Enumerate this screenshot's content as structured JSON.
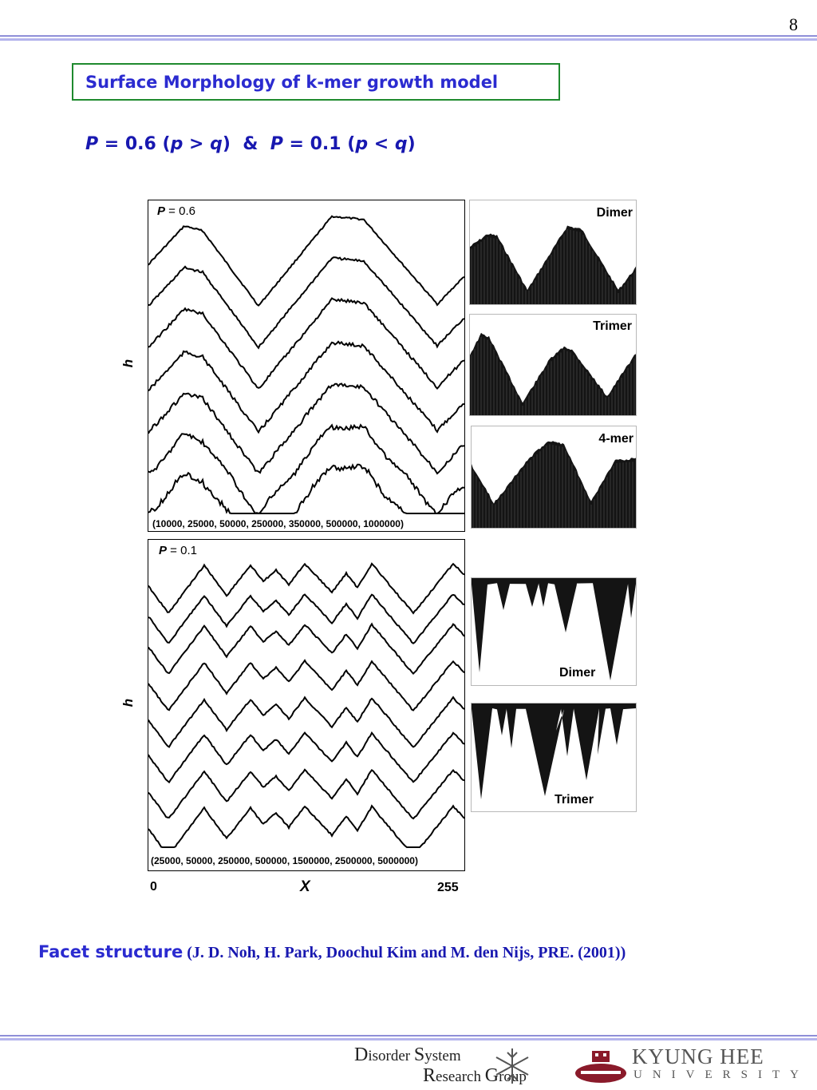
{
  "page_number": "8",
  "title": "Surface Morphology of k-mer growth model",
  "subtitle": {
    "p1_var": "P",
    "p1_rest": " = 0.6 (",
    "p1_cond_a": "p",
    "p1_cond_op": " > ",
    "p1_cond_b": "q",
    "p1_close": ")",
    "amp": "  &  ",
    "p2_var": "P",
    "p2_rest": " = 0.1 (",
    "p2_cond_a": "p",
    "p2_cond_op": " < ",
    "p2_cond_b": "q",
    "p2_close": ")"
  },
  "panel_top": {
    "label_var": "P",
    "label_value": " = 0.6",
    "caption": "(10000, 25000, 50000, 250000, 350000, 500000, 1000000)",
    "ylabel": "h"
  },
  "panel_bottom": {
    "label_var": "P",
    "label_value": " = 0.1",
    "caption": "(25000, 50000, 250000, 500000, 1500000, 2500000, 5000000)",
    "ylabel": "h"
  },
  "x_axis": {
    "label": "X",
    "min": "0",
    "max": "255"
  },
  "thumbnails_top": [
    "Dimer",
    "Trimer",
    "4-mer"
  ],
  "thumbnails_bottom": [
    "Dimer",
    "Trimer"
  ],
  "footer": {
    "strong": "Facet structure",
    "ref": " (J. D. Noh, H. Park, Doochul Kim and M. den Nijs,  PRE. (2001))"
  },
  "logos": {
    "group_line1_a": "D",
    "group_line1_b": "isorder ",
    "group_line1_c": "S",
    "group_line1_d": "ystem",
    "group_line2_a": "R",
    "group_line2_b": "esearch ",
    "group_line2_c": "G",
    "group_line2_d": "roup",
    "univ_line1": "KYUNG HEE",
    "univ_line2": "UNIVERSITY"
  },
  "colors": {
    "title_blue": "#2b2bd0",
    "subtitle_blue": "#1818b0",
    "box_green": "#1f8a2e",
    "rule_lavender": "#9a9ae0",
    "logo_red": "#8a1a2a"
  }
}
